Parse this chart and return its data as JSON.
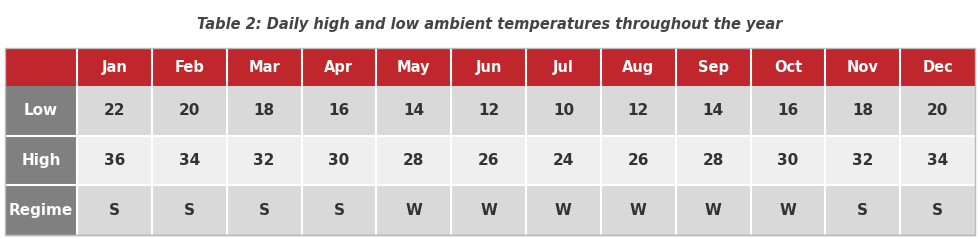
{
  "title": "Table 2: Daily high and low ambient temperatures throughout the year",
  "months": [
    "Jan",
    "Feb",
    "Mar",
    "Apr",
    "May",
    "Jun",
    "Jul",
    "Aug",
    "Sep",
    "Oct",
    "Nov",
    "Dec"
  ],
  "row_labels": [
    "Low",
    "High",
    "Regime"
  ],
  "low_values": [
    "22",
    "20",
    "18",
    "16",
    "14",
    "12",
    "10",
    "12",
    "14",
    "16",
    "18",
    "20"
  ],
  "high_values": [
    "36",
    "34",
    "32",
    "30",
    "28",
    "26",
    "24",
    "26",
    "28",
    "30",
    "32",
    "34"
  ],
  "regime_values": [
    "S",
    "S",
    "S",
    "S",
    "W",
    "W",
    "W",
    "W",
    "W",
    "W",
    "S",
    "S"
  ],
  "header_bg": "#C0272D",
  "header_text": "#FFFFFF",
  "row_label_bg": "#808080",
  "row_label_text": "#FFFFFF",
  "row1_bg": "#D9D9D9",
  "row2_bg": "#EFEFEF",
  "row3_bg": "#D9D9D9",
  "cell_text": "#333333",
  "title_color": "#444444",
  "title_fontsize": 10.5,
  "header_fontsize": 10.5,
  "cell_fontsize": 11,
  "row_label_fontsize": 11
}
